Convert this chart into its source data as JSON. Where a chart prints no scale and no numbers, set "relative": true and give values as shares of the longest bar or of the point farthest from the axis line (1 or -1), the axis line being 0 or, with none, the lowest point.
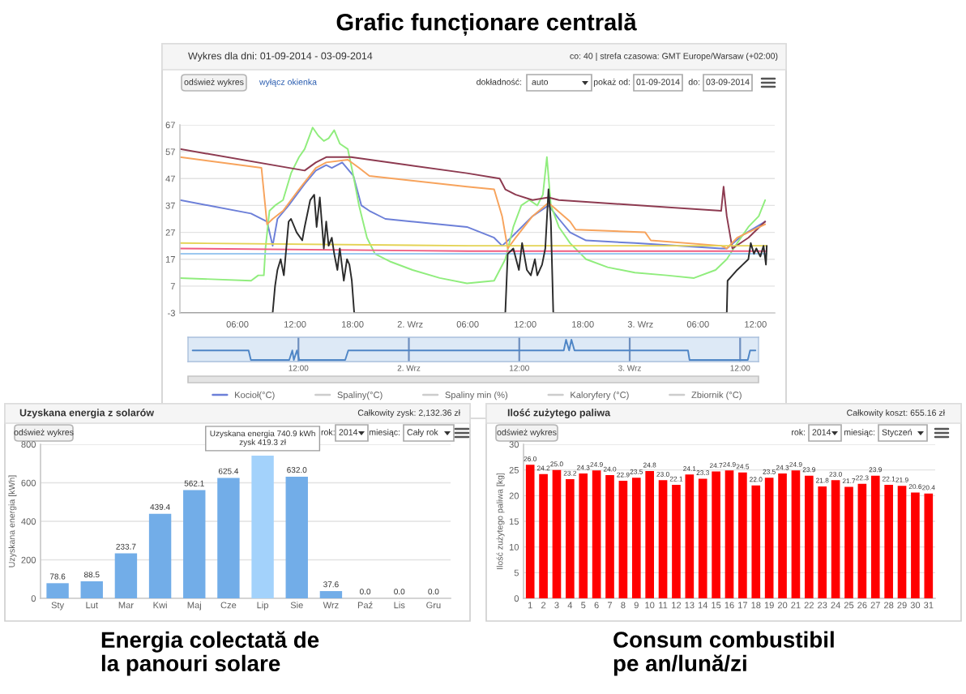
{
  "chart_data": [
    {
      "type": "line",
      "title": "Grafic funcționare centrală",
      "subtitle": "Wykres dla dni: 01-09-2014 - 03-09-2014",
      "annotations": [
        "co: 40 | strefa czasowa: GMT Europe/Warsaw (+02:00)",
        "odśwież wykres",
        "wyłącz okienka",
        "dokładność:",
        "auto",
        "pokaż od:",
        "01-09-2014",
        "do:",
        "03-09-2014"
      ],
      "xlim": [
        "2014-09-01T00:00",
        "2014-09-03T14:00"
      ],
      "xticks": [
        {
          "value": "2014-09-01T06:00",
          "label": "06:00"
        },
        {
          "value": "2014-09-01T12:00",
          "label": "12:00"
        },
        {
          "value": "2014-09-01T18:00",
          "label": "18:00"
        },
        {
          "value": "2014-09-02T00:00",
          "label": "2. Wrz"
        },
        {
          "value": "2014-09-02T06:00",
          "label": "06:00"
        },
        {
          "value": "2014-09-02T12:00",
          "label": "12:00"
        },
        {
          "value": "2014-09-02T18:00",
          "label": "18:00"
        },
        {
          "value": "2014-09-03T00:00",
          "label": "3. Wrz"
        },
        {
          "value": "2014-09-03T06:00",
          "label": "06:00"
        },
        {
          "value": "2014-09-03T12:00",
          "label": "12:00"
        }
      ],
      "ylim": [
        -3,
        67
      ],
      "yticks": [
        -3,
        7,
        17,
        27,
        37,
        47,
        57,
        67
      ],
      "grid": "y",
      "legend": "bottom",
      "series": [
        {
          "name": "Kocioł(°C)",
          "color": "#6c7fd8",
          "x": [
            "2014-09-01T00:00",
            "2014-09-01T07:25",
            "2014-09-01T09:05",
            "2014-09-01T09:40",
            "2014-09-01T10:10",
            "2014-09-01T11:20",
            "2014-09-01T13:00",
            "2014-09-01T14:10",
            "2014-09-01T15:15",
            "2014-09-01T15:50",
            "2014-09-01T16:55",
            "2014-09-01T18:05",
            "2014-09-01T18:55",
            "2014-09-01T19:45",
            "2014-09-01T21:25",
            "2014-09-02T05:55",
            "2014-09-02T08:45",
            "2014-09-02T09:35",
            "2014-09-02T10:30",
            "2014-09-02T12:45",
            "2014-09-02T14:25",
            "2014-09-02T15:30",
            "2014-09-02T16:40",
            "2014-09-02T18:20",
            "2014-09-02T23:25",
            "2014-09-03T08:25",
            "2014-09-03T09:00",
            "2014-09-03T10:40",
            "2014-09-03T13:00"
          ],
          "values": [
            39,
            34,
            31,
            22,
            32,
            37,
            45,
            50,
            52,
            51,
            53,
            48,
            37,
            35,
            32,
            29,
            25,
            22,
            25,
            33,
            37,
            32,
            27,
            24,
            23,
            21,
            21,
            26,
            31
          ]
        },
        {
          "name": "Spaliny(°C)",
          "color": "#cccccc"
        },
        {
          "name": "Spaliny min (%)",
          "color": "#cccccc"
        },
        {
          "name": "Kaloryfery (°C)",
          "color": "#cccccc"
        },
        {
          "name": "Zbiornik (°C)",
          "color": "#cccccc"
        },
        {
          "color": "#90ed7d",
          "x": [
            "2014-09-01T00:00",
            "2014-09-01T07:25",
            "2014-09-01T08:10",
            "2014-09-01T08:45",
            "2014-09-01T08:55",
            "2014-09-01T09:20",
            "2014-09-01T09:55",
            "2014-09-01T10:45",
            "2014-09-01T11:35",
            "2014-09-01T12:25",
            "2014-09-01T13:00",
            "2014-09-01T13:50",
            "2014-09-01T14:25",
            "2014-09-01T15:00",
            "2014-09-01T15:30",
            "2014-09-01T16:05",
            "2014-09-01T16:40",
            "2014-09-01T17:30",
            "2014-09-01T18:05",
            "2014-09-01T18:40",
            "2014-09-01T19:30",
            "2014-09-01T20:20",
            "2014-09-01T22:00",
            "2014-09-02T00:15",
            "2014-09-02T03:05",
            "2014-09-02T05:55",
            "2014-09-02T08:45",
            "2014-09-02T09:55",
            "2014-09-02T10:45",
            "2014-09-02T11:35",
            "2014-09-02T12:25",
            "2014-09-02T13:15",
            "2014-09-02T13:50",
            "2014-09-02T14:15",
            "2014-09-02T14:40",
            "2014-09-02T15:30",
            "2014-09-02T16:40",
            "2014-09-02T18:20",
            "2014-09-02T20:35",
            "2014-09-02T23:25",
            "2014-09-03T02:45",
            "2014-09-03T05:35",
            "2014-09-03T07:50",
            "2014-09-03T09:00",
            "2014-09-03T10:05",
            "2014-09-03T11:15",
            "2014-09-03T12:20",
            "2014-09-03T13:00"
          ],
          "values": [
            10,
            9,
            11,
            11,
            21,
            35,
            37,
            39,
            49,
            55,
            58,
            66,
            63,
            61,
            62,
            65,
            60,
            58,
            48,
            37,
            25,
            19,
            16,
            13,
            10,
            8,
            9,
            17,
            29,
            37,
            39,
            37,
            41,
            55,
            37,
            29,
            23,
            17,
            14,
            12,
            11,
            10,
            13,
            17,
            23,
            29,
            33,
            39
          ]
        },
        {
          "color": "#8d3a50",
          "x": [
            "2014-09-01T00:00",
            "2014-09-01T13:00",
            "2014-09-01T14:10",
            "2014-09-01T15:15",
            "2014-09-01T17:50",
            "2014-09-02T05:55",
            "2014-09-02T09:20",
            "2014-09-02T09:55",
            "2014-09-02T11:00",
            "2014-09-02T12:45",
            "2014-09-02T14:25",
            "2014-09-02T15:30",
            "2014-09-03T08:25",
            "2014-09-03T08:40",
            "2014-09-03T09:00",
            "2014-09-03T09:35",
            "2014-09-03T11:15",
            "2014-09-03T13:00"
          ],
          "values": [
            58,
            50,
            53,
            55,
            55,
            49,
            47,
            43,
            41,
            39,
            40,
            39,
            35,
            44,
            33,
            21,
            25,
            31
          ]
        },
        {
          "color": "#f7a35c",
          "x": [
            "2014-09-01T00:00",
            "2014-09-01T08:30",
            "2014-09-01T09:05",
            "2014-09-01T09:40",
            "2014-09-01T10:45",
            "2014-09-01T12:25",
            "2014-09-01T14:10",
            "2014-09-01T15:15",
            "2014-09-01T17:30",
            "2014-09-01T18:40",
            "2014-09-01T19:45",
            "2014-09-02T05:55",
            "2014-09-02T08:45",
            "2014-09-02T09:35",
            "2014-09-02T10:10",
            "2014-09-02T11:00",
            "2014-09-02T12:45",
            "2014-09-02T14:25",
            "2014-09-02T16:40",
            "2014-09-02T17:15",
            "2014-09-03T00:30",
            "2014-09-03T01:05",
            "2014-09-03T08:25",
            "2014-09-03T09:00",
            "2014-09-03T10:05",
            "2014-09-03T13:00"
          ],
          "values": [
            55,
            51,
            30,
            32,
            35,
            43,
            51,
            53,
            54,
            51,
            48,
            44,
            43,
            33,
            21,
            25,
            33,
            38,
            31,
            28,
            27,
            24,
            22,
            21,
            25,
            30
          ]
        },
        {
          "color": "#e4d354",
          "x": [
            "2014-09-01T00:00",
            "2014-09-02T06:00",
            "2014-09-03T13:10"
          ],
          "values": [
            23,
            22,
            22
          ]
        },
        {
          "color": "#f15c80",
          "x": [
            "2014-09-01T00:00",
            "2014-09-02T06:00",
            "2014-09-03T13:10"
          ],
          "values": [
            21,
            20,
            20
          ]
        },
        {
          "color": "#9cc8f0",
          "x": [
            "2014-09-01T00:00",
            "2014-09-03T13:10"
          ],
          "values": [
            19,
            19
          ]
        },
        {
          "color": "#2b2b2b",
          "x": [
            "2014-09-01T00:00",
            "2014-09-01T09:40",
            "2014-09-01T09:55",
            "2014-09-01T10:10",
            "2014-09-01T10:30",
            "2014-09-01T10:50",
            "2014-09-01T11:20",
            "2014-09-01T11:35",
            "2014-09-01T12:10",
            "2014-09-01T12:45",
            "2014-09-01T13:00",
            "2014-09-01T13:35",
            "2014-09-01T14:00",
            "2014-09-01T14:15",
            "2014-09-01T14:35",
            "2014-09-01T15:00",
            "2014-09-01T15:15",
            "2014-09-01T15:30",
            "2014-09-01T15:50",
            "2014-09-01T16:05",
            "2014-09-01T16:25",
            "2014-09-01T16:40",
            "2014-09-01T17:05",
            "2014-09-01T17:25",
            "2014-09-01T17:40",
            "2014-09-01T17:55",
            "2014-09-01T18:10",
            "2014-09-02T09:55",
            "2014-09-02T10:10",
            "2014-09-02T10:45",
            "2014-09-02T11:20",
            "2014-09-02T11:40",
            "2014-09-02T12:10",
            "2014-09-02T12:35",
            "2014-09-02T13:00",
            "2014-09-02T13:15",
            "2014-09-02T13:45",
            "2014-09-02T14:05",
            "2014-09-02T14:25",
            "2014-09-02T14:40",
            "2014-09-02T14:55",
            "2014-09-03T09:00",
            "2014-09-03T09:05",
            "2014-09-03T09:35",
            "2014-09-03T10:05",
            "2014-09-03T10:40",
            "2014-09-03T11:15",
            "2014-09-03T11:30",
            "2014-09-03T11:50",
            "2014-09-03T12:05",
            "2014-09-03T12:30",
            "2014-09-03T12:50",
            "2014-09-03T13:05",
            "2014-09-03T13:10"
          ],
          "values": [
            -3,
            -3,
            7,
            13,
            17,
            11,
            31,
            32,
            27,
            24,
            29,
            39,
            41,
            29,
            40,
            21,
            31,
            22,
            25,
            19,
            13,
            21,
            9,
            17,
            15,
            9,
            -3,
            -3,
            19,
            21,
            13,
            23,
            13,
            11,
            17,
            11,
            15,
            21,
            43,
            31,
            -3,
            -3,
            9,
            11,
            13,
            15,
            17,
            23,
            19,
            21,
            18,
            22,
            15,
            22
          ]
        }
      ]
    },
    {
      "type": "line",
      "relative": true,
      "xlim": [
        "2014-09-01T00:00",
        "2014-09-03T14:00"
      ],
      "xticks": [
        {
          "value": "2014-09-01T12:00",
          "label": "12:00"
        },
        {
          "value": "2014-09-02T00:00",
          "label": "2. Wrz"
        },
        {
          "value": "2014-09-02T12:00",
          "label": "12:00"
        },
        {
          "value": "2014-09-03T00:00",
          "label": "3. Wrz"
        },
        {
          "value": "2014-09-03T12:00",
          "label": "12:00"
        }
      ],
      "grid": "x",
      "series": [
        {
          "color": "#4f86c6",
          "x": [
            "2014-09-01T00:30",
            "2014-09-01T06:35",
            "2014-09-01T06:50",
            "2014-09-01T11:00",
            "2014-09-01T11:20",
            "2014-09-01T11:30",
            "2014-09-01T11:50",
            "2014-09-01T12:05",
            "2014-09-01T17:05",
            "2014-09-01T17:25",
            "2014-09-02T16:50",
            "2014-09-02T17:05",
            "2014-09-02T17:25",
            "2014-09-02T17:40",
            "2014-09-02T18:00",
            "2014-09-03T06:20",
            "2014-09-03T06:30",
            "2014-09-03T12:50",
            "2014-09-03T13:05",
            "2014-09-03T13:40"
          ],
          "values": [
            0.47,
            0.47,
            0,
            0,
            0.47,
            0,
            0.47,
            0,
            0,
            0.47,
            0.47,
            1,
            0.47,
            1,
            0.47,
            0.47,
            0,
            0,
            0.47,
            0.47
          ]
        }
      ]
    },
    {
      "type": "bar",
      "title": "Energia colectată de\nla panouri solare",
      "subtitle": "Uzyskana energia z solarów",
      "ylabel": "Uzyskana energia [kWh]",
      "categories": [
        "Sty",
        "Lut",
        "Mar",
        "Kwi",
        "Maj",
        "Cze",
        "Lip",
        "Sie",
        "Wrz",
        "Paź",
        "Lis",
        "Gru"
      ],
      "values": [
        78.6,
        88.5,
        233.7,
        439.4,
        562.1,
        625.4,
        740.9,
        632.0,
        37.6,
        0.0,
        0.0,
        0.0
      ],
      "value_labels": [
        "78.6",
        "88.5",
        "233.7",
        "439.4",
        "562.1",
        "625.4",
        null,
        "632.0",
        "37.6",
        "0.0",
        "0.0",
        "0.0"
      ],
      "colors": [
        "#72ade8",
        "#72ade8",
        "#72ade8",
        "#72ade8",
        "#72ade8",
        "#72ade8",
        "#a3d2fb",
        "#72ade8",
        "#72ade8",
        "#72ade8",
        "#72ade8",
        "#72ade8"
      ],
      "ylim": [
        0,
        800
      ],
      "yticks": [
        0,
        200,
        400,
        600,
        800
      ],
      "grid": "y",
      "annotations": [
        {
          "text": "Uzyskana energia 740.9 kWh\nzysk 419.3 zł",
          "x": "Lip",
          "y": 740.9
        },
        "Całkowity zysk: 2,132.36 zł",
        "odśwież wykres",
        "rok:",
        "2014",
        "miesiąc:",
        "Cały rok"
      ]
    },
    {
      "type": "bar",
      "title": "Consum combustibil\npe an/lună/zi",
      "subtitle": "Ilość zużytego paliwa",
      "ylabel": "Ilość zużytego paliwa [kg]",
      "categories": [
        "1",
        "2",
        "3",
        "4",
        "5",
        "6",
        "7",
        "8",
        "9",
        "10",
        "11",
        "12",
        "13",
        "14",
        "15",
        "16",
        "17",
        "18",
        "19",
        "20",
        "21",
        "22",
        "23",
        "24",
        "25",
        "26",
        "27",
        "28",
        "29",
        "30",
        "31"
      ],
      "values": [
        26.0,
        24.2,
        25.0,
        23.2,
        24.3,
        24.9,
        24.0,
        22.9,
        23.5,
        24.8,
        23.0,
        22.1,
        24.1,
        23.3,
        24.7,
        24.9,
        24.5,
        22.0,
        23.5,
        24.3,
        24.9,
        23.9,
        21.8,
        23.0,
        21.7,
        22.3,
        23.9,
        22.1,
        21.9,
        20.6,
        20.4
      ],
      "value_labels": [
        "26.0",
        "24.2",
        "25.0",
        "23.2",
        "24.3",
        "24.9",
        "24.0",
        "22.9",
        "23.5",
        "24.8",
        "23.0",
        "22.1",
        "24.1",
        "23.3",
        "24.7",
        "24.9",
        "24.5",
        "22.0",
        "23.5",
        "24.3",
        "24.9",
        "23.9",
        "21.8",
        "23.0",
        "21.7",
        "22.3",
        "23.9",
        "22.1",
        "21.9",
        "20.6",
        "20.4"
      ],
      "color": "#ff0000",
      "ylim": [
        0,
        30
      ],
      "yticks": [
        0,
        5,
        10,
        15,
        20,
        25,
        30
      ],
      "grid": "y",
      "annotations": [
        "Całkowity koszt: 655.16 zł",
        "odśwież wykres",
        "rok:",
        "2014",
        "miesiąc:",
        "Styczeń"
      ]
    }
  ]
}
